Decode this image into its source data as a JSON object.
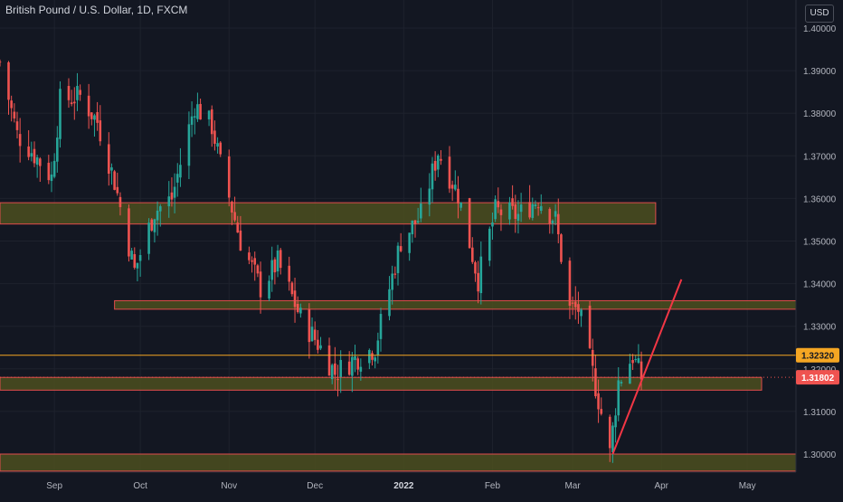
{
  "chart_data": {
    "type": "candlestick",
    "title": "British Pound / U.S. Dollar, 1D, FXCM",
    "currency": "USD",
    "x_labels": [
      "Sep",
      "Oct",
      "Nov",
      "Dec",
      "2022",
      "Feb",
      "Mar",
      "Apr",
      "May"
    ],
    "x_label_dates": [
      "2021-09-01",
      "2021-10-01",
      "2021-11-01",
      "2021-12-01",
      "2022-01-01",
      "2022-02-01",
      "2022-03-01",
      "2022-04-01",
      "2022-05-01"
    ],
    "x_range": [
      "2021-08-13",
      "2022-05-18"
    ],
    "y_ticks": [
      "1.40000",
      "1.39000",
      "1.38000",
      "1.37000",
      "1.36000",
      "1.35000",
      "1.34000",
      "1.33000",
      "1.32000",
      "1.31000",
      "1.30000"
    ],
    "y_range": [
      1.29,
      1.404
    ],
    "grid": true,
    "up_color": "#26a69a",
    "down_color": "#ef5350",
    "background_color": "#131722",
    "daily_ohlc_shown": false,
    "price_path_anchors": [
      {
        "date": "2021-08-13",
        "close": 1.392
      },
      {
        "date": "2021-08-19",
        "close": 1.375
      },
      {
        "date": "2021-08-23",
        "close": 1.372
      },
      {
        "date": "2021-08-31",
        "close": 1.365
      },
      {
        "date": "2021-09-03",
        "close": 1.383
      },
      {
        "date": "2021-09-10",
        "close": 1.384
      },
      {
        "date": "2021-09-16",
        "close": 1.378
      },
      {
        "date": "2021-09-22",
        "close": 1.364
      },
      {
        "date": "2021-09-29",
        "close": 1.343
      },
      {
        "date": "2021-10-06",
        "close": 1.357
      },
      {
        "date": "2021-10-12",
        "close": 1.36
      },
      {
        "date": "2021-10-20",
        "close": 1.382
      },
      {
        "date": "2021-10-26",
        "close": 1.377
      },
      {
        "date": "2021-10-29",
        "close": 1.368
      },
      {
        "date": "2021-11-05",
        "close": 1.35
      },
      {
        "date": "2021-11-12",
        "close": 1.339
      },
      {
        "date": "2021-11-18",
        "close": 1.345
      },
      {
        "date": "2021-11-26",
        "close": 1.332
      },
      {
        "date": "2021-12-03",
        "close": 1.325
      },
      {
        "date": "2021-12-08",
        "close": 1.319
      },
      {
        "date": "2021-12-14",
        "close": 1.322
      },
      {
        "date": "2021-12-22",
        "close": 1.325
      },
      {
        "date": "2021-12-31",
        "close": 1.35
      },
      {
        "date": "2022-01-07",
        "close": 1.356
      },
      {
        "date": "2022-01-13",
        "close": 1.371
      },
      {
        "date": "2022-01-20",
        "close": 1.361
      },
      {
        "date": "2022-01-27",
        "close": 1.341
      },
      {
        "date": "2022-02-02",
        "close": 1.357
      },
      {
        "date": "2022-02-10",
        "close": 1.356
      },
      {
        "date": "2022-02-17",
        "close": 1.36
      },
      {
        "date": "2022-02-23",
        "close": 1.355
      },
      {
        "date": "2022-02-28",
        "close": 1.334
      },
      {
        "date": "2022-03-03",
        "close": 1.334
      },
      {
        "date": "2022-03-09",
        "close": 1.316
      },
      {
        "date": "2022-03-14",
        "close": 1.3
      },
      {
        "date": "2022-03-17",
        "close": 1.317
      },
      {
        "date": "2022-03-22",
        "close": 1.323
      },
      {
        "date": "2022-03-25",
        "close": 1.318
      }
    ],
    "zones": [
      {
        "from": "2021-08-13",
        "to": "2022-03-30",
        "low": 1.354,
        "high": 1.359,
        "fill": "#4c4f1e",
        "border": "#e04c4c"
      },
      {
        "from": "2021-09-22",
        "to": "2022-05-22",
        "low": 1.334,
        "high": 1.336,
        "fill": "#4c4f1e",
        "border": "#e04c4c"
      },
      {
        "from": "2021-08-13",
        "to": "2022-05-06",
        "low": 1.315,
        "high": 1.318,
        "fill": "#4c4f1e",
        "border": "#e04c4c"
      },
      {
        "from": "2021-08-13",
        "to": "2022-05-18",
        "low": 1.296,
        "high": 1.3,
        "fill": "#4c4f1e",
        "border": "#e04c4c"
      }
    ],
    "horizontal_lines": [
      {
        "value": 1.3232,
        "color": "#f5a623",
        "style": "solid"
      },
      {
        "value": 1.31802,
        "color": "#ef5350",
        "style": "dotted"
      }
    ],
    "trend_line": {
      "from": {
        "date": "2022-03-15",
        "value": 1.3
      },
      "to": {
        "date": "2022-04-08",
        "value": 1.341
      },
      "color": "#f23645"
    },
    "price_labels": [
      {
        "text": "1.32320",
        "value": 1.3232,
        "bg": "#f5a623",
        "fg": "#131722"
      },
      {
        "text": "1.31802",
        "value": 1.31802,
        "bg": "#ef5350",
        "fg": "#ffffff"
      }
    ]
  }
}
